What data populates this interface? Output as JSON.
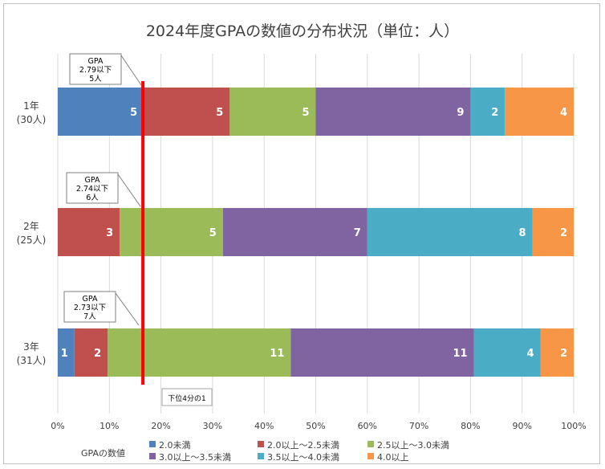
{
  "chart_data": {
    "type": "bar",
    "orientation": "horizontal",
    "stacked": "percent",
    "title": "2024年度GPAの数値の分布状況（単位：人）",
    "categories": [
      {
        "name": "1年",
        "sub": "(30人)"
      },
      {
        "name": "2年",
        "sub": "(25人)"
      },
      {
        "name": "3年",
        "sub": "(31人)"
      }
    ],
    "series": [
      {
        "name": "2.0未満",
        "color": "#4f81bd",
        "values": [
          5,
          0,
          1
        ]
      },
      {
        "name": "2.0以上～2.5未満",
        "color": "#c0504d",
        "values": [
          5,
          3,
          2
        ]
      },
      {
        "name": "2.5以上～3.0未満",
        "color": "#9bbb59",
        "values": [
          5,
          5,
          11
        ]
      },
      {
        "name": "3.0以上～3.5未満",
        "color": "#8064a2",
        "values": [
          9,
          7,
          11
        ]
      },
      {
        "name": "3.5以上～4.0未満",
        "color": "#4bacc6",
        "values": [
          2,
          8,
          4
        ]
      },
      {
        "name": "4.0以上",
        "color": "#f79646",
        "values": [
          4,
          2,
          2
        ]
      }
    ],
    "x_ticks": [
      "0%",
      "10%",
      "20%",
      "30%",
      "40%",
      "50%",
      "60%",
      "70%",
      "80%",
      "90%",
      "100%"
    ],
    "xlim": [
      0,
      100
    ],
    "grid": true,
    "legend": {
      "title": "GPAの数値",
      "placement": "bottom"
    },
    "reference_line": {
      "value": 16.5,
      "color": "#ff0000",
      "label": "下位4分の1"
    },
    "callouts": [
      {
        "lines": [
          "GPA",
          "2.79以下",
          "5人"
        ]
      },
      {
        "lines": [
          "GPA",
          "2.74以下",
          "6人"
        ]
      },
      {
        "lines": [
          "GPA",
          "2.73以下",
          "7人"
        ]
      }
    ]
  }
}
